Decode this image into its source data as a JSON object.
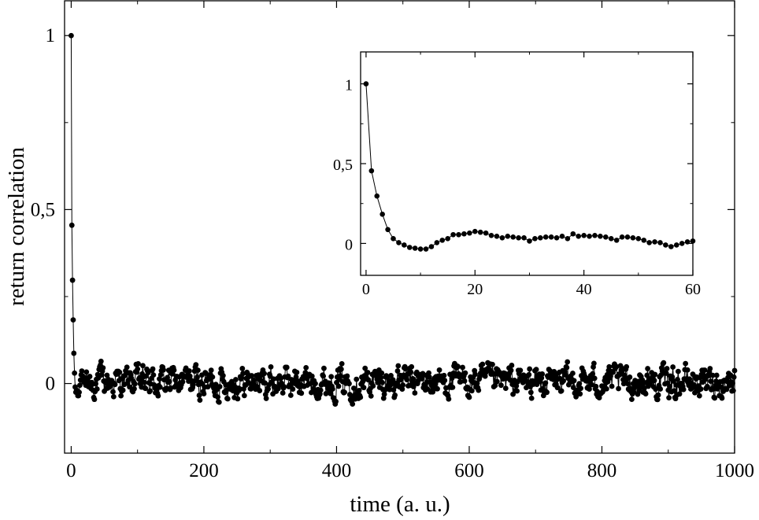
{
  "chart_data": [
    {
      "type": "line",
      "panel": "main",
      "xlabel": "time (a. u.)",
      "ylabel": "return correlation",
      "xlim": [
        -10,
        1000
      ],
      "ylim": [
        -0.2,
        1.1
      ],
      "xticks": [
        0,
        200,
        400,
        600,
        800,
        1000
      ],
      "xtick_labels": [
        "0",
        "200",
        "400",
        "600",
        "800",
        "1000"
      ],
      "yticks": [
        0,
        0.5,
        1
      ],
      "ytick_labels": [
        "0",
        "0,5",
        "1"
      ],
      "marker": "filled-circle",
      "color": "#000000",
      "grid": false,
      "series": [
        {
          "x_start": 0,
          "x_step": 1,
          "head": [
            1.0,
            0.455,
            0.297,
            0.183,
            0.087,
            0.03,
            -0.01,
            -0.025,
            -0.02,
            -0.02,
            -0.035,
            -0.035,
            -0.025,
            -0.005,
            0.01,
            0.025
          ],
          "noise_mean": 0.005,
          "noise_amplitude": 0.035,
          "count": 1001
        }
      ]
    },
    {
      "type": "line",
      "panel": "inset",
      "xlim": [
        -1,
        60
      ],
      "ylim": [
        -0.2,
        1.2
      ],
      "xticks": [
        0,
        20,
        40,
        60
      ],
      "xtick_labels": [
        "0",
        "20",
        "40",
        "60"
      ],
      "yticks": [
        0,
        0.5,
        1
      ],
      "ytick_labels": [
        "0",
        "0,5",
        "1"
      ],
      "marker": "filled-circle",
      "color": "#000000",
      "grid": false,
      "series": [
        {
          "x": [
            0,
            1,
            2,
            3,
            4,
            5,
            6,
            7,
            8,
            9,
            10,
            11,
            12,
            13,
            14,
            15,
            16,
            17,
            18,
            19,
            20,
            21,
            22,
            23,
            24,
            25,
            26,
            27,
            28,
            29,
            30,
            31,
            32,
            33,
            34,
            35,
            36,
            37,
            38,
            39,
            40,
            41,
            42,
            43,
            44,
            45,
            46,
            47,
            48,
            49,
            50,
            51,
            52,
            53,
            54,
            55,
            56,
            57,
            58,
            59,
            60
          ],
          "y": [
            1.0,
            0.455,
            0.297,
            0.183,
            0.087,
            0.03,
            0.005,
            -0.01,
            -0.025,
            -0.03,
            -0.035,
            -0.035,
            -0.02,
            0.005,
            0.02,
            0.03,
            0.055,
            0.055,
            0.06,
            0.065,
            0.075,
            0.07,
            0.065,
            0.05,
            0.045,
            0.035,
            0.045,
            0.04,
            0.035,
            0.035,
            0.015,
            0.03,
            0.035,
            0.04,
            0.04,
            0.035,
            0.045,
            0.03,
            0.06,
            0.045,
            0.05,
            0.045,
            0.05,
            0.045,
            0.04,
            0.03,
            0.02,
            0.04,
            0.04,
            0.035,
            0.03,
            0.02,
            0.005,
            0.01,
            0.005,
            -0.01,
            -0.02,
            -0.01,
            0.0,
            0.01,
            0.015
          ]
        }
      ]
    }
  ]
}
